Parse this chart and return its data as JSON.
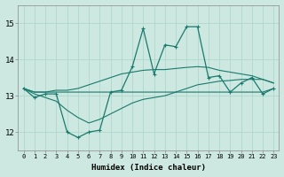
{
  "xlabel": "Humidex (Indice chaleur)",
  "xlim": [
    -0.5,
    23.5
  ],
  "ylim": [
    11.5,
    15.5
  ],
  "yticks": [
    12,
    13,
    14,
    15
  ],
  "xticks": [
    0,
    1,
    2,
    3,
    4,
    5,
    6,
    7,
    8,
    9,
    10,
    11,
    12,
    13,
    14,
    15,
    16,
    17,
    18,
    19,
    20,
    21,
    22,
    23
  ],
  "background_color": "#cce8e0",
  "grid_color": "#b0d8ce",
  "line_color": "#1a7a6e",
  "hours": [
    0,
    1,
    2,
    3,
    4,
    5,
    6,
    7,
    8,
    9,
    10,
    11,
    12,
    13,
    14,
    15,
    16,
    17,
    18,
    19,
    20,
    21,
    22,
    23
  ],
  "line_main": [
    13.2,
    12.95,
    13.05,
    13.05,
    12.0,
    11.85,
    12.0,
    12.05,
    13.1,
    13.15,
    13.8,
    14.85,
    13.6,
    14.4,
    14.35,
    14.9,
    14.9,
    13.5,
    13.55,
    13.1,
    13.35,
    13.5,
    13.05,
    13.2
  ],
  "line_upper": [
    13.2,
    13.1,
    13.1,
    13.15,
    13.15,
    13.2,
    13.3,
    13.4,
    13.5,
    13.6,
    13.65,
    13.7,
    13.72,
    13.72,
    13.75,
    13.78,
    13.8,
    13.78,
    13.7,
    13.65,
    13.6,
    13.55,
    13.45,
    13.35
  ],
  "line_mid": [
    13.2,
    13.1,
    13.1,
    13.1,
    13.1,
    13.1,
    13.1,
    13.1,
    13.1,
    13.1,
    13.1,
    13.1,
    13.1,
    13.1,
    13.1,
    13.1,
    13.1,
    13.1,
    13.1,
    13.1,
    13.1,
    13.1,
    13.1,
    13.2
  ],
  "line_lower": [
    13.2,
    13.05,
    12.95,
    12.85,
    12.6,
    12.4,
    12.25,
    12.35,
    12.5,
    12.65,
    12.8,
    12.9,
    12.95,
    13.0,
    13.1,
    13.2,
    13.3,
    13.35,
    13.4,
    13.42,
    13.45,
    13.45,
    13.45,
    13.35
  ]
}
